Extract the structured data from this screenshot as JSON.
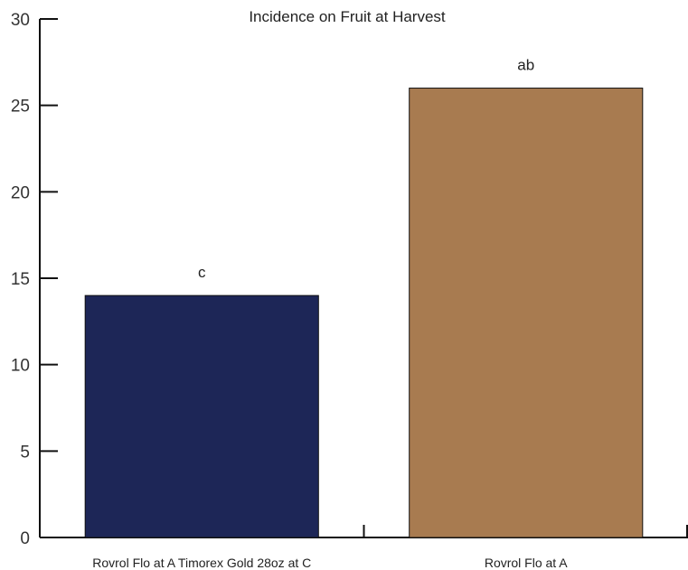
{
  "chart_data": {
    "type": "bar",
    "title": "Incidence on Fruit at Harvest",
    "xlabel": "",
    "ylabel": "",
    "categories": [
      "Rovrol Flo at A Timorex Gold 28oz at C",
      "Rovrol Flo at A"
    ],
    "values": [
      14,
      26
    ],
    "data_labels": [
      "c",
      "ab"
    ],
    "colors": [
      "#1d2657",
      "#a87b50"
    ],
    "ylim": [
      0,
      30
    ],
    "yticks": [
      0,
      5,
      10,
      15,
      20,
      25,
      30
    ],
    "grid": false,
    "legend": "none"
  }
}
